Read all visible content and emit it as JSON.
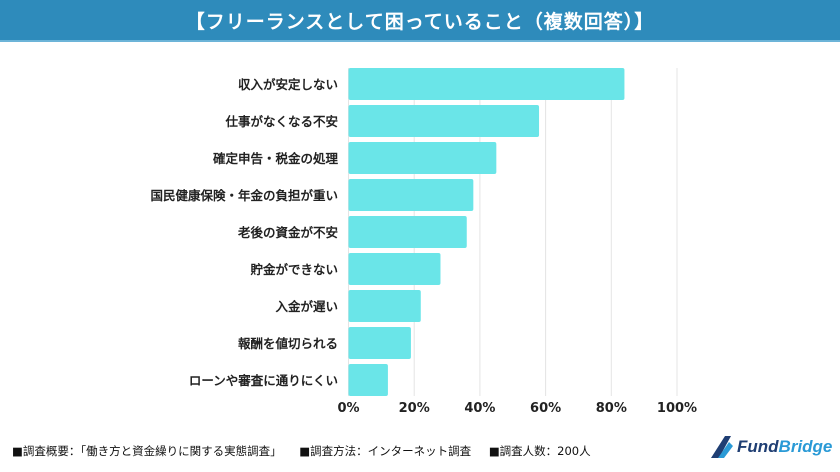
{
  "header": {
    "title": "【フリーランスとして困っていること（複数回答）】"
  },
  "chart_data": {
    "type": "bar",
    "orientation": "horizontal",
    "title": "【フリーランスとして困っていること（複数回答）】",
    "categories": [
      "収入が安定しない",
      "仕事がなくなる不安",
      "確定申告・税金の処理",
      "国民健康保険・年金の負担が重い",
      "老後の資金が不安",
      "貯金ができない",
      "入金が遅い",
      "報酬を値切られる",
      "ローンや審査に通りにくい"
    ],
    "values": [
      84,
      58,
      45,
      38,
      36,
      28,
      22,
      19,
      12
    ],
    "unit": "%",
    "xlim": [
      0,
      100
    ],
    "xticks": [
      "0%",
      "20%",
      "40%",
      "60%",
      "80%",
      "100%"
    ],
    "grid": true,
    "bar_color": "#6ae5e8",
    "xlabel": "",
    "ylabel": ""
  },
  "footer": {
    "overview": "■調査概要：「働き方と資金繰りに関する実態調査」",
    "method": "■調査方法：インターネット調査",
    "count": "■調査人数：200人"
  },
  "logo": {
    "text_a": "Fund",
    "text_b": "Bridge"
  },
  "colors": {
    "header": "#2e8bbb",
    "bar": "#6ae5e8",
    "grid": "#e4e4e4"
  }
}
